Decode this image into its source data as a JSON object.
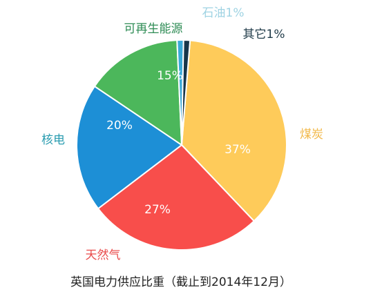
{
  "chart_data": {
    "type": "pie",
    "title": "英国电力供应比重（截止到2014年12月）",
    "slices": [
      {
        "name": "煤炭",
        "value": 37,
        "label": "37%",
        "color": "#FECB5A",
        "text_color": "#F2B94A"
      },
      {
        "name": "天然气",
        "value": 27,
        "label": "27%",
        "color": "#F84E4B",
        "text_color": "#E94A4A"
      },
      {
        "name": "核电",
        "value": 20,
        "label": "20%",
        "color": "#1D8FD6",
        "text_color": "#2A9CB0"
      },
      {
        "name": "可再生能源",
        "value": 15,
        "label": "15%",
        "color": "#4CB75B",
        "text_color": "#2E8C55"
      },
      {
        "name": "石油",
        "value": 1,
        "label": "石油1%",
        "color": "#3AAAD8",
        "text_color": "#9FD3E3"
      },
      {
        "name": "其它",
        "value": 1,
        "label": "其它1%",
        "color": "#17364A",
        "text_color": "#1F3A48"
      }
    ]
  }
}
